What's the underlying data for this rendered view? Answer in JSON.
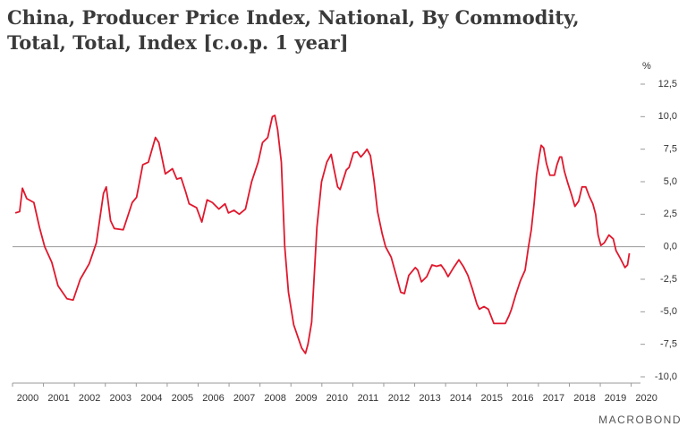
{
  "chart_data": {
    "type": "line",
    "title_lines": [
      "China, Producer Price Index, National, By Commodity,",
      "Total, Total, Index [c.o.p. 1 year]"
    ],
    "y_unit": "%",
    "source": "MACROBOND",
    "x": [
      2000.09,
      2000.23,
      2000.32,
      2000.46,
      2000.69,
      2000.87,
      2001.04,
      2001.27,
      2001.47,
      2001.76,
      2001.96,
      2002.19,
      2002.48,
      2002.71,
      2002.94,
      2003.03,
      2003.17,
      2003.29,
      2003.58,
      2003.87,
      2004.01,
      2004.21,
      2004.39,
      2004.62,
      2004.73,
      2004.94,
      2005.17,
      2005.31,
      2005.45,
      2005.6,
      2005.71,
      2005.95,
      2006.12,
      2006.29,
      2006.46,
      2006.67,
      2006.87,
      2006.98,
      2007.16,
      2007.33,
      2007.53,
      2007.73,
      2007.94,
      2008.08,
      2008.25,
      2008.4,
      2008.48,
      2008.57,
      2008.69,
      2008.8,
      2008.92,
      2009.09,
      2009.35,
      2009.47,
      2009.55,
      2009.67,
      2009.84,
      2009.99,
      2010.16,
      2010.3,
      2010.39,
      2010.51,
      2010.59,
      2010.79,
      2010.88,
      2011.02,
      2011.14,
      2011.26,
      2011.37,
      2011.46,
      2011.57,
      2011.69,
      2011.8,
      2011.95,
      2012.06,
      2012.24,
      2012.38,
      2012.55,
      2012.67,
      2012.81,
      2013.02,
      2013.1,
      2013.22,
      2013.39,
      2013.56,
      2013.71,
      2013.85,
      2013.97,
      2014.08,
      2014.26,
      2014.43,
      2014.57,
      2014.72,
      2014.86,
      2015.01,
      2015.09,
      2015.24,
      2015.38,
      2015.56,
      2015.76,
      2015.93,
      2016.05,
      2016.13,
      2016.28,
      2016.42,
      2016.57,
      2016.68,
      2016.77,
      2016.86,
      2016.94,
      2017.03,
      2017.09,
      2017.17,
      2017.26,
      2017.37,
      2017.52,
      2017.6,
      2017.69,
      2017.75,
      2017.84,
      2017.95,
      2018.07,
      2018.18,
      2018.3,
      2018.41,
      2018.53,
      2018.64,
      2018.76,
      2018.85,
      2018.93,
      2019.02,
      2019.13,
      2019.28,
      2019.42,
      2019.51,
      2019.65,
      2019.8,
      2019.88,
      2019.94
    ],
    "series": [
      {
        "name": "China, Producer Price Index",
        "color": "#e0182d",
        "values": [
          2.6,
          2.7,
          4.5,
          3.7,
          3.4,
          1.5,
          0.0,
          -1.2,
          -3.0,
          -4.0,
          -4.1,
          -2.5,
          -1.3,
          0.3,
          4.1,
          4.6,
          2.0,
          1.4,
          1.3,
          3.4,
          3.8,
          6.3,
          6.5,
          8.4,
          8.0,
          5.6,
          6.0,
          5.2,
          5.3,
          4.2,
          3.3,
          3.0,
          1.9,
          3.6,
          3.4,
          2.9,
          3.3,
          2.6,
          2.8,
          2.5,
          2.9,
          5.0,
          6.5,
          8.0,
          8.4,
          10.0,
          10.1,
          9.0,
          6.5,
          0.0,
          -3.5,
          -6.0,
          -7.8,
          -8.2,
          -7.5,
          -5.8,
          1.5,
          5.0,
          6.5,
          7.1,
          6.0,
          4.6,
          4.4,
          5.9,
          6.1,
          7.2,
          7.3,
          6.9,
          7.2,
          7.5,
          7.0,
          5.0,
          2.7,
          1.0,
          0.0,
          -0.8,
          -2.0,
          -3.5,
          -3.6,
          -2.2,
          -1.6,
          -1.8,
          -2.7,
          -2.3,
          -1.4,
          -1.5,
          -1.4,
          -1.8,
          -2.3,
          -1.6,
          -1.0,
          -1.5,
          -2.2,
          -3.2,
          -4.4,
          -4.8,
          -4.6,
          -4.8,
          -5.9,
          -5.9,
          -5.9,
          -5.3,
          -4.8,
          -3.6,
          -2.6,
          -1.8,
          0.0,
          1.3,
          3.3,
          5.5,
          7.0,
          7.8,
          7.6,
          6.4,
          5.5,
          5.5,
          6.3,
          6.9,
          6.9,
          5.8,
          4.9,
          4.0,
          3.1,
          3.5,
          4.6,
          4.6,
          3.9,
          3.3,
          2.5,
          0.9,
          0.1,
          0.3,
          0.9,
          0.6,
          -0.3,
          -0.9,
          -1.6,
          -1.4,
          -0.5
        ]
      }
    ],
    "xlim": [
      2000,
      2020.3
    ],
    "xticks": [
      2000,
      2001,
      2002,
      2003,
      2004,
      2005,
      2006,
      2007,
      2008,
      2009,
      2010,
      2011,
      2012,
      2013,
      2014,
      2015,
      2016,
      2017,
      2018,
      2019,
      2020
    ],
    "ylim": [
      -10.5,
      13.5
    ],
    "yticks": [
      {
        "value": 12.5,
        "label": "12,5"
      },
      {
        "value": 10,
        "label": "10,0"
      },
      {
        "value": 7.5,
        "label": "7,5"
      },
      {
        "value": 5,
        "label": "5,0"
      },
      {
        "value": 2.5,
        "label": "2,5"
      },
      {
        "value": 0,
        "label": "0,0"
      },
      {
        "value": -2.5,
        "label": "-2,5"
      },
      {
        "value": -5,
        "label": "-5,0"
      },
      {
        "value": -7.5,
        "label": "-7,5"
      },
      {
        "value": -10,
        "label": "-10,0"
      }
    ],
    "grid": false
  }
}
